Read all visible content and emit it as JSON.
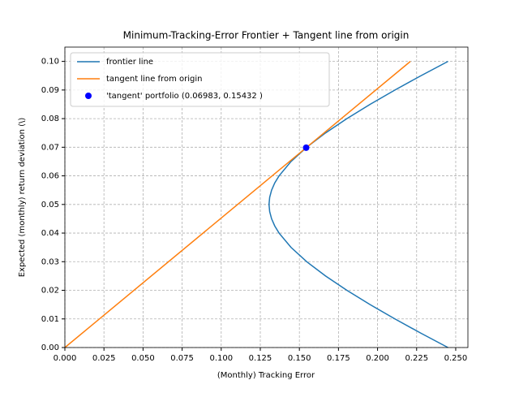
{
  "chart_data": {
    "type": "line",
    "title": "Minimum-Tracking-Error Frontier + Tangent line from origin",
    "x_label": "(Monthly) Tracking Error",
    "y_label": "Expected (monthly) return deviation (\\)",
    "xlim": [
      0,
      0.2578
    ],
    "ylim": [
      0,
      0.105
    ],
    "xticks": [
      {
        "value": 0,
        "label": "0.000"
      },
      {
        "value": 0.025,
        "label": "0.025"
      },
      {
        "value": 0.05,
        "label": "0.050"
      },
      {
        "value": 0.075,
        "label": "0.075"
      },
      {
        "value": 0.1,
        "label": "0.100"
      },
      {
        "value": 0.125,
        "label": "0.125"
      },
      {
        "value": 0.15,
        "label": "0.150"
      },
      {
        "value": 0.175,
        "label": "0.175"
      },
      {
        "value": 0.2,
        "label": "0.200"
      },
      {
        "value": 0.225,
        "label": "0.225"
      },
      {
        "value": 0.25,
        "label": "0.250"
      }
    ],
    "yticks": [
      {
        "value": 0,
        "label": "0.00"
      },
      {
        "value": 0.01,
        "label": "0.01"
      },
      {
        "value": 0.02,
        "label": "0.02"
      },
      {
        "value": 0.03,
        "label": "0.03"
      },
      {
        "value": 0.04,
        "label": "0.04"
      },
      {
        "value": 0.05,
        "label": "0.05"
      },
      {
        "value": 0.06,
        "label": "0.06"
      },
      {
        "value": 0.07,
        "label": "0.07"
      },
      {
        "value": 0.08,
        "label": "0.08"
      },
      {
        "value": 0.09,
        "label": "0.09"
      },
      {
        "value": 0.1,
        "label": "0.10"
      }
    ],
    "grid": true,
    "legend": "upper left",
    "series": [
      {
        "name": "frontier line",
        "color": "#1f77b4",
        "style": "line",
        "x": [
          0.24505,
          0.22777,
          0.21111,
          0.19524,
          0.18036,
          0.16674,
          0.1547,
          0.14464,
          0.13701,
          0.13423,
          0.13222,
          0.131,
          0.13058,
          0.131,
          0.13222,
          0.13423,
          0.13701,
          0.14464,
          0.1547,
          0.16674,
          0.18036,
          0.19524,
          0.21111,
          0.22777,
          0.24505
        ],
        "values": [
          0,
          0.005,
          0.01,
          0.015,
          0.02,
          0.025,
          0.03,
          0.035,
          0.04,
          0.0425,
          0.045,
          0.0475,
          0.05,
          0.0525,
          0.055,
          0.0575,
          0.06,
          0.065,
          0.07,
          0.075,
          0.08,
          0.085,
          0.09,
          0.095,
          0.1
        ]
      },
      {
        "name": "tangent line from origin",
        "color": "#ff7f0e",
        "style": "line",
        "x": [
          0,
          0.22099
        ],
        "values": [
          0,
          0.1
        ]
      },
      {
        "name": "'tangent' portfolio (0.06983, 0.15432 )",
        "color": "#0000ff",
        "style": "point",
        "x": [
          0.15432
        ],
        "values": [
          0.06983
        ]
      }
    ]
  }
}
